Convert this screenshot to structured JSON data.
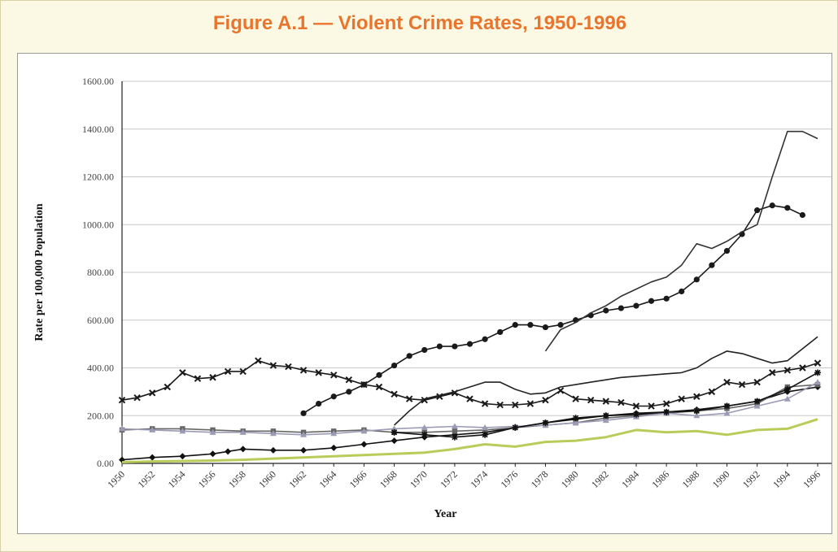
{
  "title": "Figure A.1 — Violent Crime Rates, 1950-1996",
  "chart_data": {
    "type": "line",
    "title": "Figure A.1 — Violent Crime Rates, 1950-1996",
    "xlabel": "Year",
    "ylabel": "Rate per 100,000 Population",
    "xlim": [
      1950,
      1996
    ],
    "ylim": [
      0,
      1600
    ],
    "yticks": [
      "0.00",
      "200.00",
      "400.00",
      "600.00",
      "800.00",
      "1000.00",
      "1200.00",
      "1400.00",
      "1600.00"
    ],
    "xticks": [
      "1950",
      "1952",
      "1954",
      "1956",
      "1958",
      "1960",
      "1962",
      "1964",
      "1966",
      "1968",
      "1970",
      "1972",
      "1974",
      "1976",
      "1978",
      "1980",
      "1982",
      "1984",
      "1986",
      "1988",
      "1990",
      "1992",
      "1994",
      "1996"
    ],
    "grid": "horizontal",
    "series": [
      {
        "color": "#1a1a1a",
        "marker": "circle",
        "x": [
          1962,
          1963,
          1964,
          1965,
          1966,
          1967,
          1968,
          1969,
          1970,
          1971,
          1972,
          1973,
          1974,
          1975,
          1976,
          1977,
          1978,
          1979,
          1980,
          1981,
          1982,
          1983,
          1984,
          1985,
          1986,
          1987,
          1988,
          1989,
          1990,
          1991,
          1992,
          1993,
          1994,
          1995
        ],
        "y": [
          210,
          250,
          280,
          300,
          330,
          370,
          410,
          450,
          475,
          490,
          490,
          500,
          520,
          550,
          580,
          580,
          570,
          580,
          600,
          620,
          640,
          650,
          660,
          680,
          690,
          720,
          770,
          830,
          890,
          960,
          1060,
          1080,
          1070,
          1040
        ]
      },
      {
        "color": "#333333",
        "marker": "none",
        "x": [
          1978,
          1979,
          1980,
          1981,
          1982,
          1983,
          1984,
          1985,
          1986,
          1987,
          1988,
          1989,
          1990,
          1991,
          1992,
          1993,
          1994,
          1995,
          1996
        ],
        "y": [
          470,
          560,
          590,
          630,
          660,
          700,
          730,
          760,
          780,
          830,
          920,
          900,
          930,
          970,
          1000,
          1200,
          1390,
          1390,
          1360
        ]
      },
      {
        "color": "#1a1a1a",
        "marker": "x",
        "x": [
          1950,
          1951,
          1952,
          1953,
          1954,
          1955,
          1956,
          1957,
          1958,
          1959,
          1960,
          1961,
          1962,
          1963,
          1964,
          1965,
          1966,
          1967,
          1968,
          1969,
          1970,
          1971,
          1972,
          1973,
          1974,
          1975,
          1976,
          1977,
          1978,
          1979,
          1980,
          1981,
          1982,
          1983,
          1984,
          1985,
          1986,
          1987,
          1988,
          1989,
          1990,
          1991,
          1992,
          1993,
          1994,
          1995,
          1996
        ],
        "y": [
          265,
          275,
          295,
          320,
          380,
          355,
          360,
          385,
          385,
          430,
          410,
          405,
          390,
          380,
          370,
          350,
          330,
          320,
          290,
          270,
          265,
          280,
          295,
          270,
          250,
          245,
          245,
          250,
          265,
          305,
          270,
          265,
          260,
          255,
          240,
          240,
          250,
          270,
          280,
          300,
          340,
          330,
          340,
          380,
          390,
          400,
          420
        ]
      },
      {
        "color": "#222222",
        "marker": "none",
        "x": [
          1968,
          1969,
          1970,
          1971,
          1972,
          1973,
          1974,
          1975,
          1976,
          1977,
          1978,
          1979,
          1980,
          1981,
          1982,
          1983,
          1984,
          1985,
          1986,
          1987,
          1988,
          1989,
          1990,
          1991,
          1992,
          1993,
          1994,
          1995,
          1996
        ],
        "y": [
          160,
          220,
          270,
          285,
          300,
          320,
          340,
          340,
          310,
          290,
          295,
          320,
          330,
          340,
          350,
          360,
          365,
          370,
          375,
          380,
          400,
          440,
          470,
          460,
          440,
          420,
          430,
          480,
          530
        ]
      },
      {
        "color": "#111111",
        "marker": "diamond",
        "x": [
          1950,
          1952,
          1954,
          1956,
          1957,
          1958,
          1960,
          1962,
          1964,
          1966,
          1968,
          1970,
          1972,
          1974,
          1976,
          1978,
          1980,
          1982,
          1984,
          1986,
          1988,
          1990,
          1992,
          1994,
          1996
        ],
        "y": [
          15,
          25,
          30,
          40,
          50,
          60,
          55,
          55,
          65,
          80,
          95,
          110,
          120,
          130,
          150,
          170,
          185,
          200,
          210,
          215,
          225,
          240,
          260,
          300,
          320
        ]
      },
      {
        "color": "#666666",
        "marker": "square",
        "x": [
          1950,
          1952,
          1954,
          1956,
          1958,
          1960,
          1962,
          1964,
          1966,
          1968,
          1970,
          1972,
          1974,
          1976,
          1978,
          1980,
          1982,
          1984,
          1986,
          1988,
          1990,
          1992,
          1994,
          1996
        ],
        "y": [
          140,
          145,
          145,
          140,
          135,
          135,
          130,
          135,
          140,
          130,
          130,
          135,
          140,
          150,
          160,
          170,
          190,
          200,
          210,
          220,
          230,
          250,
          320,
          330
        ]
      },
      {
        "color": "#9b9bb5",
        "marker": "triangle",
        "x": [
          1950,
          1952,
          1954,
          1956,
          1958,
          1960,
          1962,
          1964,
          1966,
          1968,
          1970,
          1972,
          1974,
          1976,
          1978,
          1980,
          1982,
          1984,
          1986,
          1988,
          1990,
          1992,
          1994,
          1996
        ],
        "y": [
          145,
          140,
          135,
          130,
          130,
          125,
          120,
          125,
          135,
          145,
          150,
          155,
          150,
          155,
          160,
          170,
          180,
          195,
          210,
          200,
          210,
          240,
          270,
          340
        ]
      },
      {
        "color": "#111111",
        "marker": "star",
        "x": [
          1968,
          1970,
          1972,
          1974,
          1976,
          1978,
          1980,
          1982,
          1984,
          1986,
          1988,
          1990,
          1992,
          1994,
          1996
        ],
        "y": [
          130,
          120,
          110,
          120,
          150,
          170,
          190,
          200,
          205,
          215,
          220,
          240,
          260,
          310,
          380
        ]
      },
      {
        "color": "#b9cc5a",
        "marker": "none",
        "x": [
          1950,
          1952,
          1954,
          1956,
          1958,
          1960,
          1962,
          1964,
          1966,
          1968,
          1970,
          1972,
          1974,
          1975,
          1976,
          1978,
          1980,
          1982,
          1984,
          1986,
          1988,
          1990,
          1992,
          1994,
          1996
        ],
        "y": [
          5,
          8,
          10,
          12,
          15,
          20,
          25,
          30,
          35,
          40,
          45,
          60,
          80,
          75,
          70,
          90,
          95,
          110,
          140,
          130,
          135,
          120,
          140,
          145,
          185
        ]
      }
    ]
  }
}
